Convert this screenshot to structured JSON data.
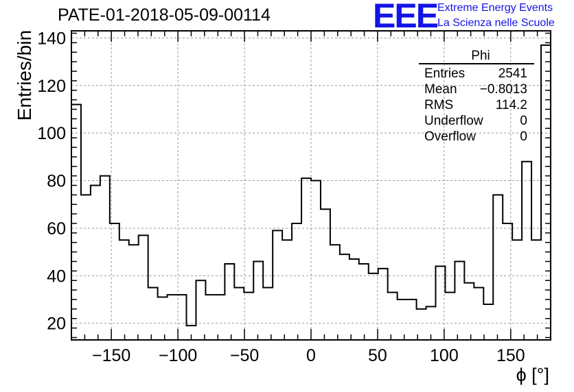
{
  "title": "PATE-01-2018-05-09-00114",
  "logo": {
    "mark": "EEE",
    "line1": "Extreme Energy Events",
    "line2": "La Scienza nelle Scuole",
    "color": "#1414e6"
  },
  "stats": {
    "name": "Phi",
    "rows": [
      {
        "label": "Entries",
        "value": "2541"
      },
      {
        "label": "Mean",
        "value": "−0.8013"
      },
      {
        "label": "RMS",
        "value": "114.2"
      },
      {
        "label": "Underflow",
        "value": "0"
      },
      {
        "label": "Overflow",
        "value": "0"
      }
    ]
  },
  "chart_data": {
    "type": "histogram",
    "xlabel": "ϕ [°]",
    "ylabel": "Entries/bin",
    "xlim": [
      -180,
      180
    ],
    "ylim": [
      13,
      143
    ],
    "bin_edges_start": -180,
    "bin_width": 7.2,
    "values": [
      112,
      74,
      78,
      82,
      62,
      55,
      53,
      57,
      35,
      31,
      32,
      32,
      19,
      38,
      32,
      32,
      45,
      35,
      33,
      46,
      35,
      59,
      55,
      62,
      81,
      80,
      68,
      53,
      49,
      47,
      45,
      41,
      43,
      33,
      30,
      30,
      26,
      27,
      44,
      33,
      46,
      37,
      35,
      28,
      74,
      62,
      55,
      88,
      55,
      137
    ],
    "x_ticks": [
      -150,
      -100,
      -50,
      0,
      50,
      100,
      150
    ],
    "y_ticks": [
      20,
      40,
      60,
      80,
      100,
      120,
      140
    ],
    "grid": true,
    "line_color": "#000000"
  }
}
